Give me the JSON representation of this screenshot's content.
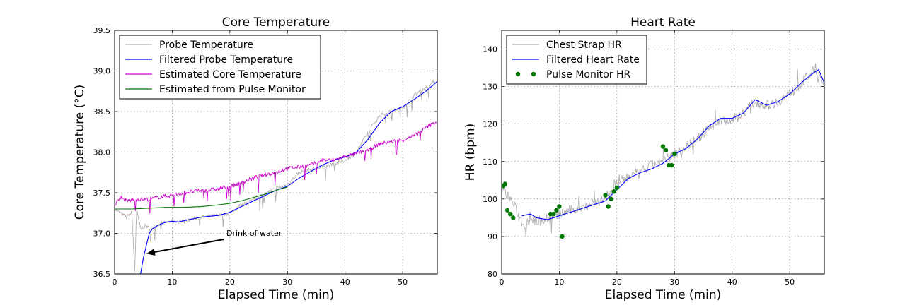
{
  "chart_data": [
    {
      "type": "line",
      "title": "Core Temperature",
      "xlabel": "Elapsed Time (min)",
      "ylabel": "Core Temperature (°C)",
      "xlim": [
        0,
        56
      ],
      "ylim": [
        36.5,
        39.5
      ],
      "xticks": [
        "0",
        "10",
        "20",
        "30",
        "40",
        "50"
      ],
      "yticks": [
        "36.5",
        "37.0",
        "37.5",
        "38.0",
        "38.5",
        "39.0",
        "39.5"
      ],
      "grid": true,
      "legend_position": "upper-left",
      "annotation": {
        "text": "Drink of water",
        "points_to_x": 5.5,
        "points_to_y": 36.75
      },
      "series": [
        {
          "name": "Probe Temperature",
          "color": "#b0b0b0",
          "style": "noisy",
          "x": [
            0,
            1,
            2,
            3,
            3.5,
            3.8,
            4.5,
            5.5,
            6,
            8,
            10,
            12,
            15,
            18,
            20,
            22,
            25,
            28,
            30,
            32,
            35,
            38,
            40,
            42,
            44,
            46,
            48,
            50,
            52,
            54,
            56
          ],
          "y": [
            37.3,
            37.25,
            37.2,
            37.25,
            36.5,
            37.3,
            37.05,
            37.1,
            37.05,
            37.12,
            37.15,
            37.15,
            37.2,
            37.22,
            37.25,
            37.35,
            37.45,
            37.55,
            37.6,
            37.75,
            37.8,
            37.85,
            37.9,
            38.0,
            38.25,
            38.45,
            38.5,
            38.55,
            38.7,
            38.8,
            38.88
          ]
        },
        {
          "name": "Filtered Probe Temperature",
          "color": "#0000ff",
          "style": "smooth",
          "x": [
            4.5,
            5,
            5.5,
            6,
            6.5,
            7.5,
            9,
            10,
            11,
            13,
            15,
            18,
            20,
            22,
            25,
            28,
            30,
            32,
            34,
            36,
            38,
            40,
            42,
            44,
            46,
            48,
            50,
            52,
            54,
            56
          ],
          "y": [
            36.5,
            36.7,
            36.85,
            37.0,
            37.05,
            37.1,
            37.14,
            37.15,
            37.14,
            37.17,
            37.2,
            37.22,
            37.26,
            37.33,
            37.43,
            37.53,
            37.58,
            37.68,
            37.76,
            37.84,
            37.9,
            37.94,
            38.0,
            38.16,
            38.36,
            38.5,
            38.56,
            38.65,
            38.75,
            38.87
          ]
        },
        {
          "name": "Estimated Core Temperature",
          "color": "#cc00cc",
          "style": "noisy",
          "x": [
            0,
            1,
            2,
            4,
            6,
            8,
            10,
            12,
            14,
            16,
            18,
            20,
            22,
            24,
            26,
            28,
            30,
            32,
            34,
            36,
            38,
            40,
            42,
            44,
            46,
            48,
            50,
            52,
            54,
            56
          ],
          "y": [
            37.35,
            37.45,
            37.4,
            37.42,
            37.42,
            37.45,
            37.47,
            37.5,
            37.52,
            37.53,
            37.55,
            37.58,
            37.62,
            37.68,
            37.72,
            37.75,
            37.8,
            37.82,
            37.84,
            37.9,
            37.9,
            37.95,
            37.98,
            38.03,
            38.1,
            38.13,
            38.15,
            38.2,
            38.3,
            38.38
          ]
        },
        {
          "name": "Estimated from Pulse Monitor",
          "color": "#007700",
          "style": "smooth",
          "x": [
            0,
            3,
            6,
            9,
            12,
            15,
            18,
            20,
            22,
            24,
            26,
            28,
            30
          ],
          "y": [
            37.3,
            37.3,
            37.31,
            37.32,
            37.32,
            37.33,
            37.35,
            37.37,
            37.4,
            37.44,
            37.48,
            37.53,
            37.57
          ]
        }
      ]
    },
    {
      "type": "line",
      "title": "Heart Rate",
      "xlabel": "Elapsed Time (min)",
      "ylabel": "HR (bpm)",
      "xlim": [
        0,
        56
      ],
      "ylim": [
        80,
        145
      ],
      "xticks": [
        "0",
        "10",
        "20",
        "30",
        "40",
        "50"
      ],
      "yticks": [
        "80",
        "90",
        "100",
        "110",
        "120",
        "130",
        "140"
      ],
      "grid": true,
      "legend_position": "upper-left",
      "series": [
        {
          "name": "Chest Strap HR",
          "color": "#b0b0b0",
          "style": "noisy",
          "x": [
            0,
            1,
            2,
            3,
            4,
            5,
            6,
            8,
            10,
            12,
            14,
            16,
            18,
            20,
            22,
            24,
            26,
            28,
            30,
            32,
            34,
            36,
            38,
            40,
            42,
            44,
            46,
            48,
            50,
            52,
            54,
            56
          ],
          "y": [
            103,
            101,
            99,
            95,
            93,
            95,
            94,
            95,
            96,
            97,
            98,
            99,
            100,
            104,
            106,
            107,
            109,
            110,
            112,
            114,
            116,
            119,
            121,
            121,
            123,
            126,
            125,
            126,
            128,
            131,
            134,
            131
          ]
        },
        {
          "name": "Filtered Heart Rate",
          "color": "#0000ff",
          "style": "smooth",
          "x": [
            3.5,
            5,
            6,
            8,
            10,
            12,
            14,
            16,
            18,
            20,
            22,
            24,
            26,
            28,
            30,
            32,
            34,
            36,
            38,
            40,
            42,
            44,
            46,
            48,
            50,
            52,
            54,
            55,
            56
          ],
          "y": [
            95.5,
            96,
            95,
            94.5,
            95.5,
            96.5,
            97.5,
            98.5,
            99.5,
            102.5,
            105.5,
            107,
            108,
            109.5,
            112,
            113.5,
            116,
            119.5,
            121.5,
            121.5,
            123,
            126.5,
            125,
            126,
            128,
            131,
            133.5,
            134.5,
            131
          ]
        },
        {
          "name": "Pulse Monitor HR",
          "color": "#007700",
          "style": "points",
          "x": [
            0.3,
            0.6,
            1,
            1.5,
            2,
            8.5,
            9,
            9.5,
            10,
            10.5,
            18,
            18.5,
            19,
            19.5,
            20,
            28,
            28.5,
            29,
            29.5,
            30
          ],
          "y": [
            103.5,
            104,
            97,
            96,
            95,
            96,
            96,
            97,
            98,
            90,
            101,
            98,
            100,
            102,
            103,
            114,
            113,
            109,
            109,
            112
          ]
        }
      ]
    }
  ]
}
